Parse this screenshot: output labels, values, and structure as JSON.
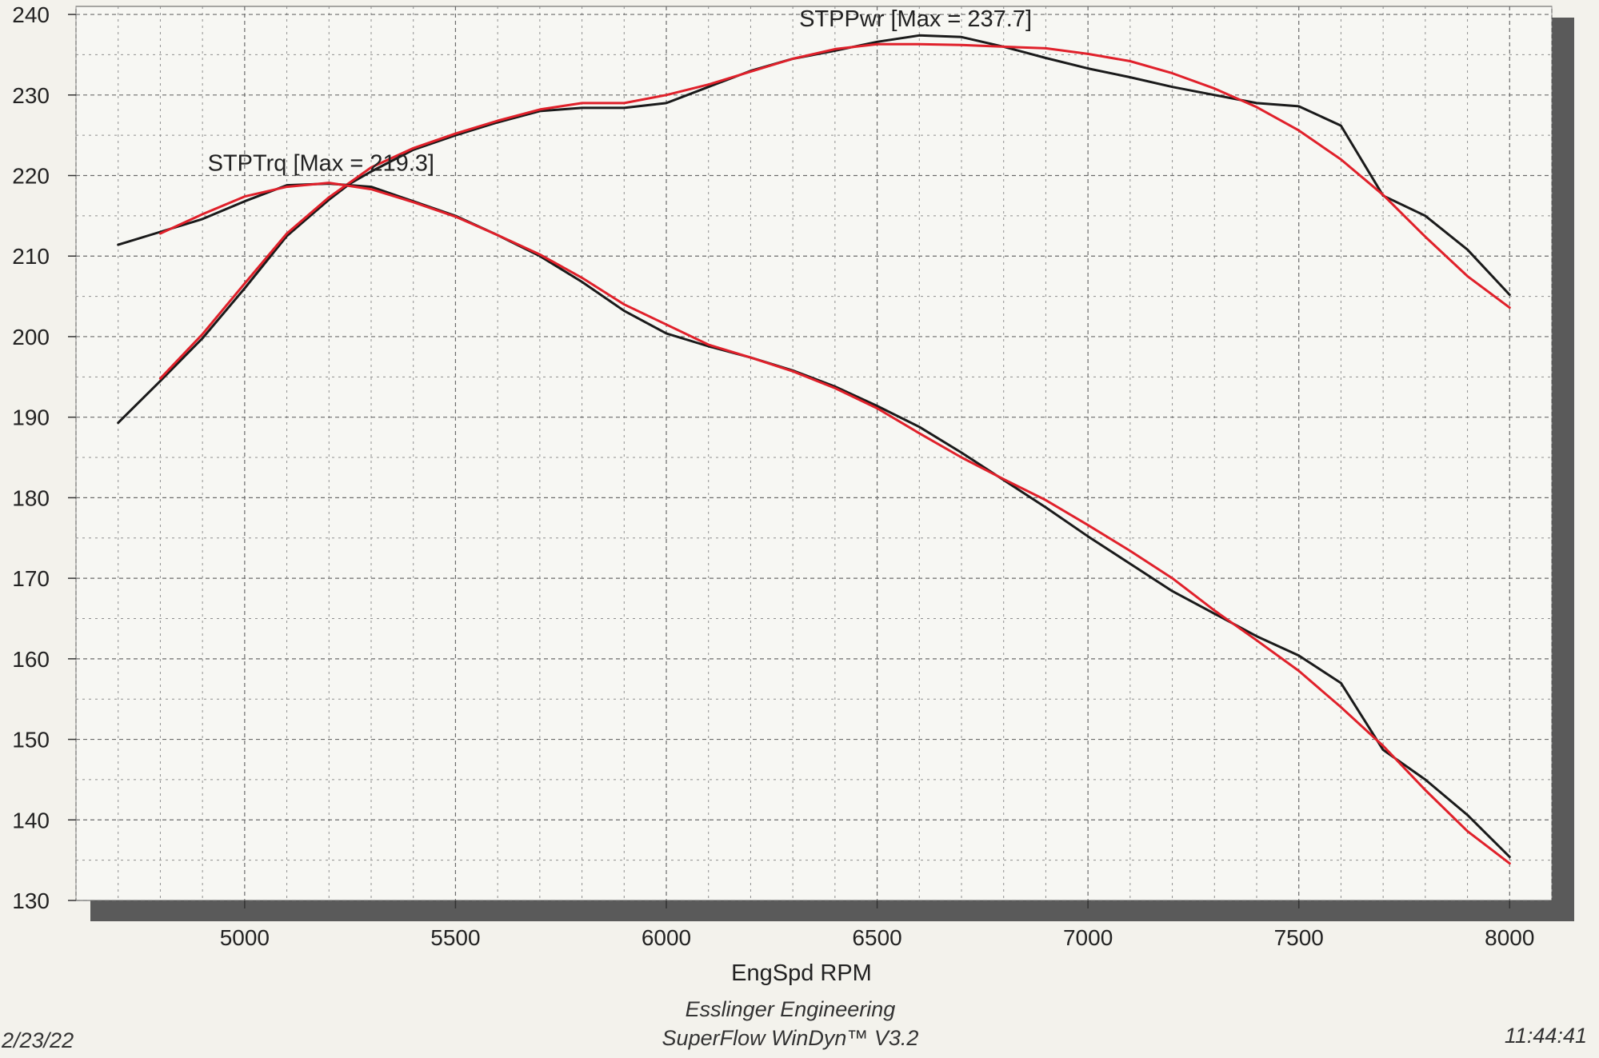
{
  "chart_data": {
    "type": "line",
    "xlabel": "EngSpd RPM",
    "ylabel": "",
    "xlim": [
      4600,
      8100
    ],
    "ylim": [
      130,
      241
    ],
    "x_ticks": [
      5000,
      5500,
      6000,
      6500,
      7000,
      7500,
      8000
    ],
    "y_ticks": [
      130,
      140,
      150,
      160,
      170,
      180,
      190,
      200,
      210,
      220,
      230,
      240
    ],
    "grid": true,
    "colors": {
      "black": "#1a1a1a",
      "red": "#e0202a"
    },
    "series": [
      {
        "color": "#1a1a1a",
        "points": [
          [
            4700,
            189.3
          ],
          [
            4800,
            194.5
          ],
          [
            4900,
            199.8
          ],
          [
            5000,
            206
          ],
          [
            5100,
            212.5
          ],
          [
            5200,
            217
          ],
          [
            5250,
            219
          ],
          [
            5300,
            220.5
          ],
          [
            5400,
            223.2
          ],
          [
            5500,
            225
          ],
          [
            5600,
            226.6
          ],
          [
            5700,
            228
          ],
          [
            5800,
            228.4
          ],
          [
            5900,
            228.4
          ],
          [
            6000,
            229
          ],
          [
            6100,
            231
          ],
          [
            6200,
            233
          ],
          [
            6300,
            234.5
          ],
          [
            6400,
            235.5
          ],
          [
            6500,
            236.6
          ],
          [
            6600,
            237.4
          ],
          [
            6700,
            237.2
          ],
          [
            6800,
            236
          ],
          [
            6900,
            234.6
          ],
          [
            7000,
            233.3
          ],
          [
            7100,
            232.2
          ],
          [
            7200,
            231
          ],
          [
            7300,
            230
          ],
          [
            7400,
            229
          ],
          [
            7500,
            228.6
          ],
          [
            7600,
            226.2
          ],
          [
            7700,
            217.5
          ],
          [
            7800,
            215
          ],
          [
            7900,
            210.8
          ],
          [
            8000,
            205.2
          ]
        ]
      },
      {
        "color": "#e0202a",
        "points": [
          [
            4800,
            194.8
          ],
          [
            4900,
            200.3
          ],
          [
            5000,
            206.6
          ],
          [
            5100,
            212.8
          ],
          [
            5200,
            217.3
          ],
          [
            5300,
            221
          ],
          [
            5400,
            223.4
          ],
          [
            5500,
            225.2
          ],
          [
            5600,
            226.8
          ],
          [
            5700,
            228.2
          ],
          [
            5800,
            229
          ],
          [
            5900,
            229
          ],
          [
            6000,
            230
          ],
          [
            6100,
            231.3
          ],
          [
            6200,
            232.9
          ],
          [
            6300,
            234.5
          ],
          [
            6400,
            235.7
          ],
          [
            6500,
            236.3
          ],
          [
            6600,
            236.3
          ],
          [
            6700,
            236.2
          ],
          [
            6800,
            236
          ],
          [
            6900,
            235.8
          ],
          [
            7000,
            235.1
          ],
          [
            7100,
            234.2
          ],
          [
            7200,
            232.7
          ],
          [
            7300,
            230.8
          ],
          [
            7400,
            228.5
          ],
          [
            7500,
            225.6
          ],
          [
            7600,
            222
          ],
          [
            7700,
            217.6
          ],
          [
            7800,
            212.4
          ],
          [
            7900,
            207.5
          ],
          [
            8000,
            203.6
          ]
        ]
      },
      {
        "color": "#1a1a1a",
        "points": [
          [
            4700,
            211.4
          ],
          [
            4800,
            213
          ],
          [
            4900,
            214.6
          ],
          [
            5000,
            216.8
          ],
          [
            5100,
            218.8
          ],
          [
            5200,
            219
          ],
          [
            5300,
            218.6
          ],
          [
            5400,
            216.8
          ],
          [
            5500,
            215
          ],
          [
            5600,
            212.6
          ],
          [
            5700,
            210
          ],
          [
            5800,
            206.8
          ],
          [
            5900,
            203.2
          ],
          [
            6000,
            200.4
          ],
          [
            6100,
            198.8
          ],
          [
            6200,
            197.4
          ],
          [
            6300,
            195.8
          ],
          [
            6400,
            193.8
          ],
          [
            6500,
            191.4
          ],
          [
            6600,
            188.8
          ],
          [
            6700,
            185.6
          ],
          [
            6800,
            182.2
          ],
          [
            6900,
            178.8
          ],
          [
            7000,
            175.2
          ],
          [
            7100,
            171.8
          ],
          [
            7200,
            168.4
          ],
          [
            7300,
            165.6
          ],
          [
            7400,
            162.8
          ],
          [
            7500,
            160.4
          ],
          [
            7600,
            157
          ],
          [
            7700,
            148.7
          ],
          [
            7800,
            145
          ],
          [
            7900,
            140.6
          ],
          [
            8000,
            135.4
          ]
        ]
      },
      {
        "color": "#e0202a",
        "points": [
          [
            4800,
            212.8
          ],
          [
            4900,
            215.2
          ],
          [
            5000,
            217.4
          ],
          [
            5100,
            218.6
          ],
          [
            5200,
            219.1
          ],
          [
            5300,
            218.3
          ],
          [
            5400,
            216.7
          ],
          [
            5500,
            214.9
          ],
          [
            5600,
            212.6
          ],
          [
            5700,
            210.2
          ],
          [
            5800,
            207.3
          ],
          [
            5900,
            204
          ],
          [
            6000,
            201.5
          ],
          [
            6100,
            199
          ],
          [
            6200,
            197.4
          ],
          [
            6300,
            195.7
          ],
          [
            6400,
            193.6
          ],
          [
            6500,
            191.1
          ],
          [
            6600,
            188
          ],
          [
            6700,
            185
          ],
          [
            6800,
            182.3
          ],
          [
            6900,
            179.7
          ],
          [
            7000,
            176.6
          ],
          [
            7100,
            173.4
          ],
          [
            7200,
            170
          ],
          [
            7300,
            166
          ],
          [
            7400,
            162.3
          ],
          [
            7500,
            158.5
          ],
          [
            7600,
            154
          ],
          [
            7700,
            149.2
          ],
          [
            7800,
            143.7
          ],
          [
            7900,
            138.6
          ],
          [
            8000,
            134.6
          ]
        ]
      }
    ],
    "annotations": [
      {
        "text": "STPPwr [Max = 237.7]",
        "x": 6610,
        "y": 237.7
      },
      {
        "text": "STPTrq [Max = 219.3]",
        "x": 5200,
        "y": 219.8
      }
    ],
    "footer": {
      "date": "2/23/22",
      "company": "Esslinger Engineering",
      "software": "SuperFlow WinDyn™ V3.2",
      "time": "11:44:41"
    }
  }
}
